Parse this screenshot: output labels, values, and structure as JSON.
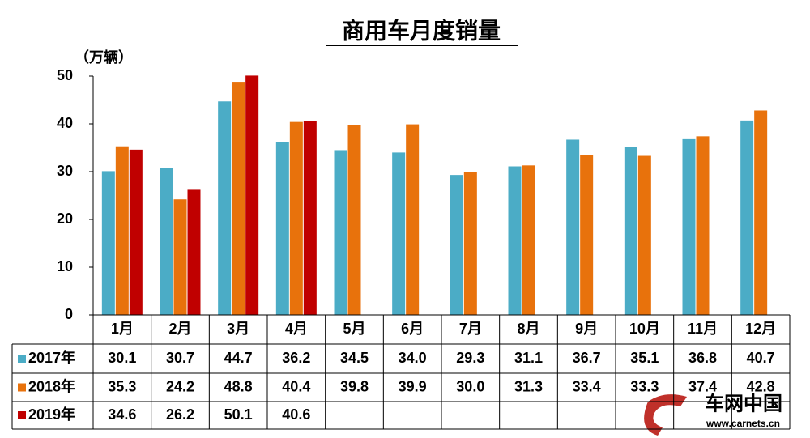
{
  "chart_data": {
    "type": "bar",
    "title": "商用车月度销量",
    "y_label": "（万辆）",
    "categories": [
      "1月",
      "2月",
      "3月",
      "4月",
      "5月",
      "6月",
      "7月",
      "8月",
      "9月",
      "10月",
      "11月",
      "12月"
    ],
    "series": [
      {
        "name": "2017年",
        "color": "#4bacc6",
        "values": [
          30.1,
          30.7,
          44.7,
          36.2,
          34.5,
          34,
          29.3,
          31.1,
          36.7,
          35.1,
          36.8,
          40.7
        ],
        "value_labels": [
          "30.1",
          "30.7",
          "44.7",
          "36.2",
          "34.5",
          "34.0",
          "29.3",
          "31.1",
          "36.7",
          "35.1",
          "36.8",
          "40.7"
        ]
      },
      {
        "name": "2018年",
        "color": "#e8720c",
        "values": [
          35.3,
          24.2,
          48.8,
          40.4,
          39.8,
          39.9,
          30,
          31.3,
          33.4,
          33.3,
          37.4,
          42.8
        ],
        "value_labels": [
          "35.3",
          "24.2",
          "48.8",
          "40.4",
          "39.8",
          "39.9",
          "30.0",
          "31.3",
          "33.4",
          "33.3",
          "37.4",
          "42.8"
        ]
      },
      {
        "name": "2019年",
        "color": "#c00000",
        "values": [
          34.6,
          26.2,
          50.1,
          40.6,
          null,
          null,
          null,
          null,
          null,
          null,
          null,
          null
        ],
        "value_labels": [
          "34.6",
          "26.2",
          "50.1",
          "40.6",
          null,
          null,
          null,
          null,
          null,
          null,
          null,
          null
        ]
      }
    ],
    "ylim": [
      0,
      50
    ],
    "yticks": [
      0,
      10,
      20,
      30,
      40,
      50
    ],
    "grid": false
  },
  "watermark": {
    "text": "车网中国",
    "url": "www.carnets.cn"
  }
}
